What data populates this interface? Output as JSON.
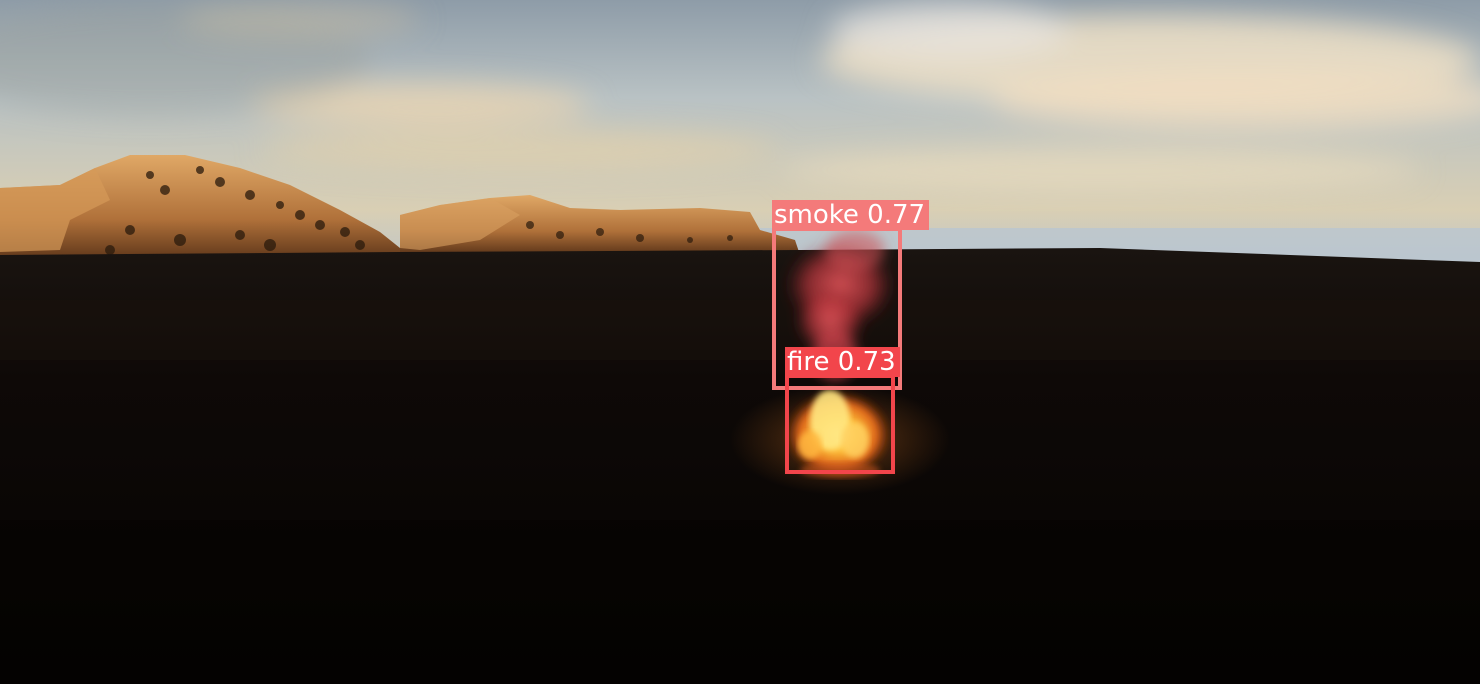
{
  "detections": [
    {
      "class_label": "smoke",
      "confidence": "0.77",
      "color": "#f47a7a"
    },
    {
      "class_label": "fire",
      "confidence": "0.73",
      "color": "#f2454b"
    }
  ],
  "colors": {
    "sky_top": "#9aa8b4",
    "sky_horizon": "#e8d3a8",
    "cliff_lit": "#c98a45",
    "forest": "#0c0705",
    "smoke": "#d8454c",
    "flame": "#ffb030"
  }
}
